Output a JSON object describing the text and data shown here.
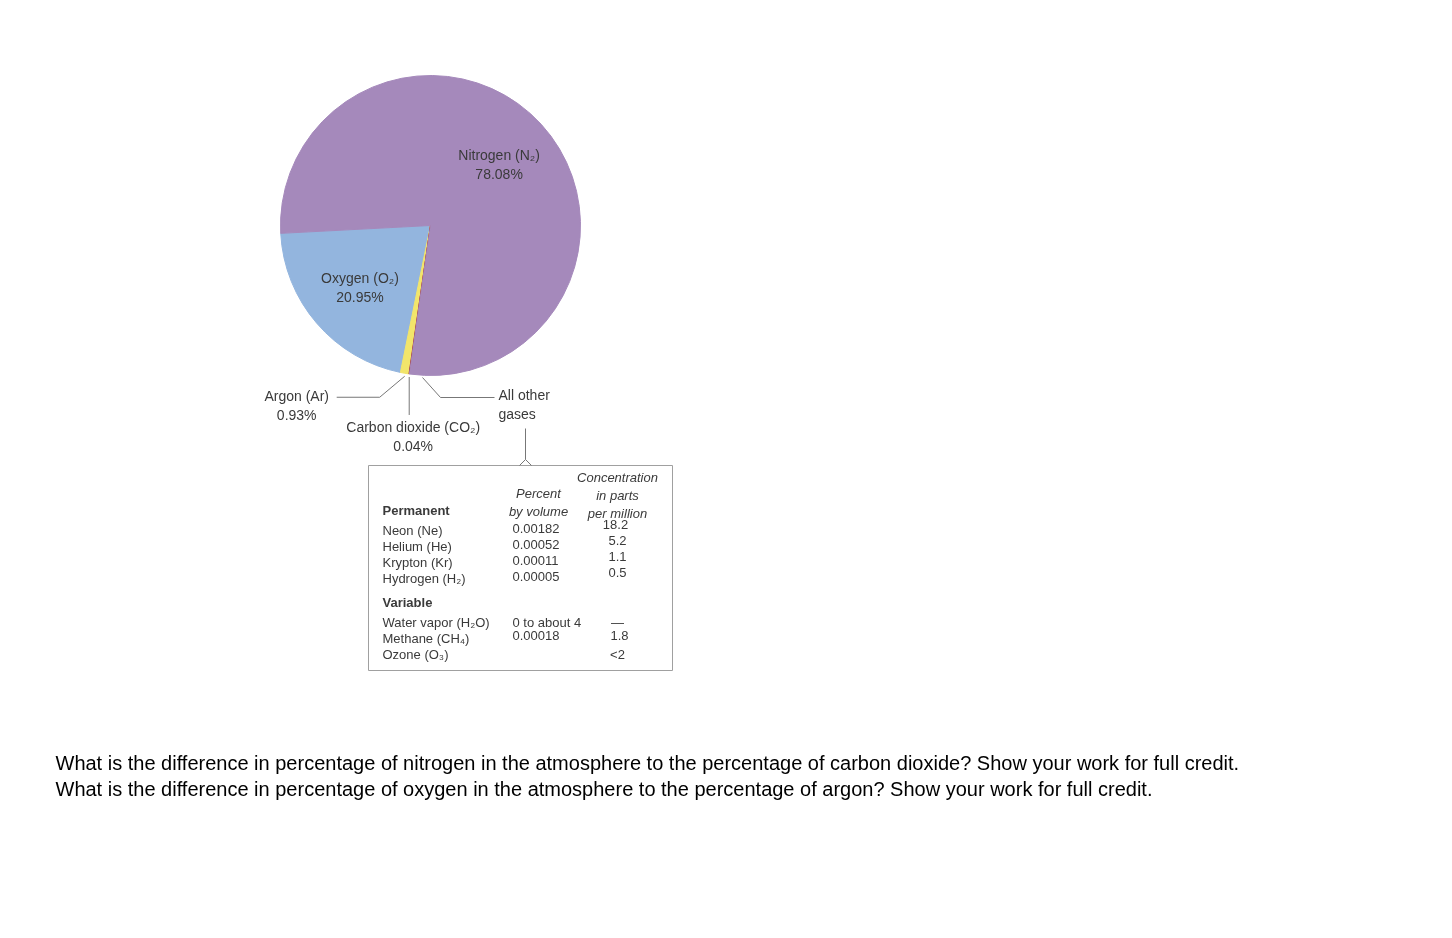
{
  "chart_data": {
    "type": "pie",
    "categories": [
      "Oxygen (O₂)",
      "Argon (Ar)",
      "Carbon dioxide (CO₂)",
      "Nitrogen (N₂)"
    ],
    "values": [
      20.95,
      0.93,
      0.04,
      78.08
    ],
    "colors": [
      "#93b5de",
      "#f2e56b",
      "#a82a2a",
      "#a589bb"
    ],
    "value_labels": [
      "20.95%",
      "0.93%",
      "0.04%",
      "78.08%"
    ],
    "annotations": [
      "All other\ngases",
      "Concentration\nin parts\nper million",
      "Percent\nby volume",
      "Permanent",
      "Neon (Ne)",
      "0.00182",
      "18.2",
      "Helium (He)",
      "0.00052",
      "5.2",
      "Krypton (Kr)",
      "0.00011",
      "1.1",
      "Hydrogen (H₂)",
      "0.00005",
      "0.5",
      "Variable",
      "Water vapor (H₂O)",
      "0 to about 4",
      "—",
      "Methane (CH₄)",
      "0.00018",
      "1.8",
      "Ozone (O₃)",
      "<2",
      "What is the difference in percentage of nitrogen in the atmosphere to the percentage of carbon dioxide? Show your work for full credit.",
      "What is the difference in percentage of oxygen in the atmosphere to the percentage of argon? Show your work for full credit."
    ]
  }
}
